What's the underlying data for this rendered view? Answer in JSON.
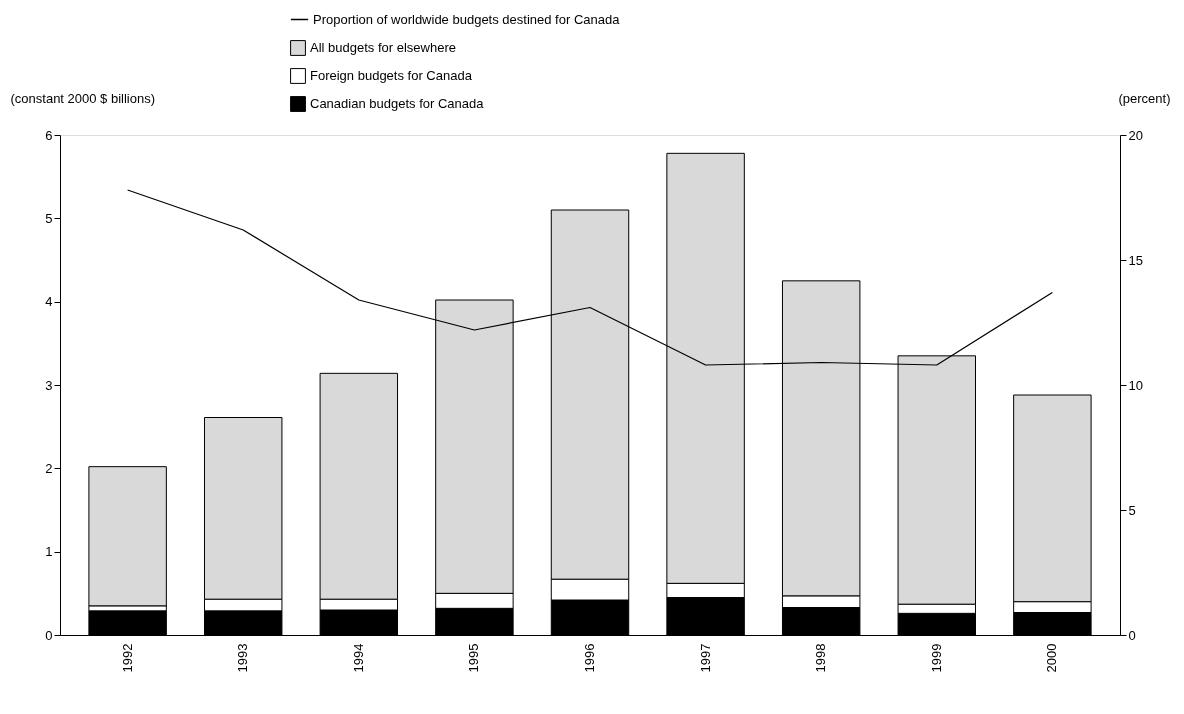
{
  "chart_data": {
    "type": "bar",
    "stacked": true,
    "ylabel": "(constant 2000 $ billions)",
    "y2label": "(percent)",
    "categories": [
      "1992",
      "1993",
      "1994",
      "1995",
      "1996",
      "1997",
      "1998",
      "1999",
      "2000"
    ],
    "series": [
      {
        "name": "Canadian budgets for Canada",
        "color": "#000000",
        "values": [
          0.29,
          0.29,
          0.3,
          0.32,
          0.42,
          0.45,
          0.33,
          0.26,
          0.27
        ]
      },
      {
        "name": "Foreign budgets for Canada",
        "color": "#ffffff",
        "values": [
          0.06,
          0.14,
          0.13,
          0.18,
          0.25,
          0.17,
          0.14,
          0.11,
          0.13
        ]
      },
      {
        "name": "All budgets for elsewhere",
        "color": "#d9d9d9",
        "values": [
          1.67,
          2.18,
          2.71,
          3.52,
          4.43,
          5.16,
          3.78,
          2.98,
          2.48
        ]
      },
      {
        "name": "Proportion of worldwide budgets destined for Canada",
        "type": "line",
        "axis": "y2",
        "color": "#000000",
        "values": [
          17.8,
          16.2,
          13.4,
          12.2,
          13.1,
          10.8,
          10.9,
          10.8,
          13.7
        ]
      }
    ],
    "ylim": [
      0,
      6
    ],
    "yticks": [
      0,
      1,
      2,
      3,
      4,
      5,
      6
    ],
    "y2lim": [
      0,
      20
    ],
    "y2ticks": [
      0,
      5,
      10,
      15,
      20
    ],
    "grid": false,
    "legend": "top",
    "marker": "none",
    "line_style": "solid"
  }
}
